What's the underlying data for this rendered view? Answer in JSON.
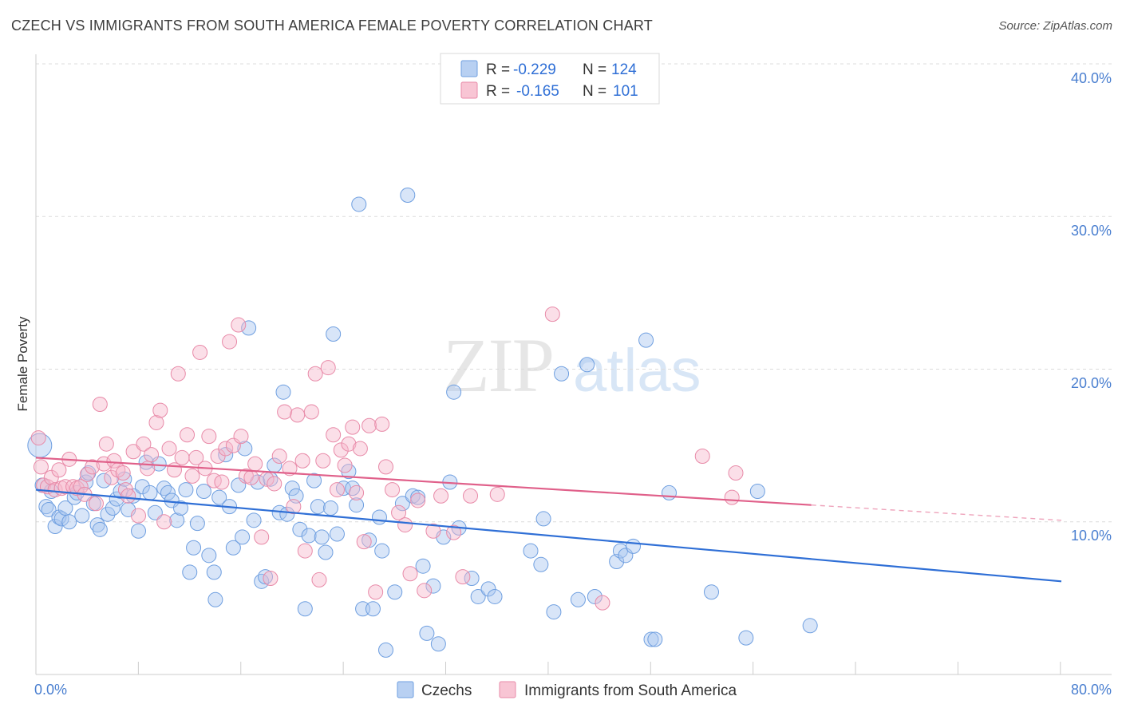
{
  "title": "CZECH VS IMMIGRANTS FROM SOUTH AMERICA FEMALE POVERTY CORRELATION CHART",
  "source": "Source: ZipAtlas.com",
  "watermark": {
    "zip": "ZIP",
    "atlas": "atlas"
  },
  "legend": {
    "r_label": "R =",
    "n_label": "N =",
    "rows": [
      {
        "r": "-0.229",
        "n": "124",
        "fill": "#b8d0f2",
        "stroke": "#6f9fe0"
      },
      {
        "r": "-0.165",
        "n": "101",
        "fill": "#f8c5d4",
        "stroke": "#e88aa8"
      }
    ]
  },
  "bottom_legend": [
    {
      "label": "Czechs",
      "fill": "#b8d0f2",
      "stroke": "#6f9fe0"
    },
    {
      "label": "Immigrants from South America",
      "fill": "#f8c5d4",
      "stroke": "#e88aa8"
    }
  ],
  "chart_data": {
    "type": "scatter",
    "title": "CZECH VS IMMIGRANTS FROM SOUTH AMERICA FEMALE POVERTY CORRELATION CHART",
    "xlabel": "",
    "ylabel": "Female Poverty",
    "xlim": [
      0,
      80
    ],
    "ylim": [
      0,
      40
    ],
    "x_tick_labels": [
      "0.0%",
      "80.0%"
    ],
    "y_ticks": [
      10,
      20,
      30,
      40
    ],
    "y_tick_labels": [
      "10.0%",
      "20.0%",
      "30.0%",
      "40.0%"
    ],
    "grid": "horizontal dashed",
    "legend_position": "top-center",
    "colors": {
      "czechs": "#4a7fd0",
      "immigrants": "#e0608a",
      "czechs_line": "#2f6fd6",
      "immigrants_line": "#e0608a"
    },
    "series": [
      {
        "name": "Czechs",
        "trend": {
          "x0": 0,
          "y0": 12.1,
          "x1": 80,
          "y1": 6.1
        },
        "points": [
          [
            0.3,
            15.0
          ],
          [
            0.5,
            12.4
          ],
          [
            0.8,
            11.0
          ],
          [
            1.0,
            10.8
          ],
          [
            1.2,
            12.0
          ],
          [
            1.5,
            9.7
          ],
          [
            1.8,
            10.3
          ],
          [
            2.0,
            10.2
          ],
          [
            2.3,
            10.9
          ],
          [
            2.6,
            10.0
          ],
          [
            3.0,
            11.6
          ],
          [
            3.2,
            11.9
          ],
          [
            3.6,
            10.4
          ],
          [
            3.9,
            12.6
          ],
          [
            4.1,
            13.2
          ],
          [
            4.5,
            11.2
          ],
          [
            4.8,
            9.8
          ],
          [
            5.0,
            9.5
          ],
          [
            5.3,
            12.7
          ],
          [
            5.6,
            10.5
          ],
          [
            6.0,
            10.9
          ],
          [
            6.3,
            11.5
          ],
          [
            6.6,
            12.0
          ],
          [
            6.9,
            12.8
          ],
          [
            7.2,
            10.8
          ],
          [
            7.6,
            11.7
          ],
          [
            8.0,
            9.4
          ],
          [
            8.3,
            12.3
          ],
          [
            8.6,
            13.9
          ],
          [
            8.9,
            11.9
          ],
          [
            9.3,
            10.6
          ],
          [
            9.6,
            13.8
          ],
          [
            10.0,
            12.2
          ],
          [
            10.3,
            11.9
          ],
          [
            10.6,
            11.4
          ],
          [
            11.0,
            10.1
          ],
          [
            11.3,
            10.9
          ],
          [
            11.7,
            12.1
          ],
          [
            12.0,
            6.7
          ],
          [
            12.3,
            8.3
          ],
          [
            12.6,
            9.9
          ],
          [
            13.1,
            12.0
          ],
          [
            13.5,
            7.8
          ],
          [
            13.9,
            6.7
          ],
          [
            14.0,
            4.9
          ],
          [
            14.3,
            11.6
          ],
          [
            14.8,
            14.4
          ],
          [
            15.1,
            11.0
          ],
          [
            15.4,
            8.3
          ],
          [
            15.8,
            12.4
          ],
          [
            16.1,
            9.0
          ],
          [
            16.3,
            14.8
          ],
          [
            16.6,
            22.7
          ],
          [
            17.0,
            10.1
          ],
          [
            17.3,
            12.6
          ],
          [
            17.6,
            6.1
          ],
          [
            17.9,
            6.4
          ],
          [
            18.3,
            12.8
          ],
          [
            18.6,
            13.7
          ],
          [
            19.0,
            10.6
          ],
          [
            19.3,
            18.5
          ],
          [
            19.6,
            10.5
          ],
          [
            20.0,
            12.2
          ],
          [
            20.3,
            11.7
          ],
          [
            20.6,
            9.5
          ],
          [
            21.0,
            4.3
          ],
          [
            21.3,
            9.1
          ],
          [
            21.7,
            12.7
          ],
          [
            22.0,
            11.0
          ],
          [
            22.3,
            9.0
          ],
          [
            22.6,
            8.0
          ],
          [
            23.0,
            10.9
          ],
          [
            23.2,
            22.3
          ],
          [
            23.5,
            9.2
          ],
          [
            24.0,
            12.2
          ],
          [
            24.4,
            13.3
          ],
          [
            24.7,
            12.2
          ],
          [
            25.0,
            11.1
          ],
          [
            25.2,
            30.8
          ],
          [
            25.5,
            4.3
          ],
          [
            26.0,
            8.8
          ],
          [
            26.3,
            4.3
          ],
          [
            26.8,
            10.3
          ],
          [
            27.0,
            8.1
          ],
          [
            27.3,
            1.6
          ],
          [
            28.0,
            5.4
          ],
          [
            28.6,
            11.2
          ],
          [
            29.0,
            31.4
          ],
          [
            29.4,
            11.7
          ],
          [
            29.8,
            11.6
          ],
          [
            30.2,
            7.1
          ],
          [
            30.5,
            2.7
          ],
          [
            31.0,
            5.8
          ],
          [
            31.4,
            2.0
          ],
          [
            31.8,
            9.0
          ],
          [
            32.3,
            12.6
          ],
          [
            32.6,
            18.5
          ],
          [
            33.0,
            9.6
          ],
          [
            34.0,
            6.3
          ],
          [
            34.5,
            5.1
          ],
          [
            35.3,
            5.6
          ],
          [
            35.8,
            5.1
          ],
          [
            38.6,
            8.1
          ],
          [
            39.4,
            7.2
          ],
          [
            39.6,
            10.2
          ],
          [
            40.4,
            4.1
          ],
          [
            41.0,
            19.7
          ],
          [
            42.3,
            4.9
          ],
          [
            43.0,
            20.3
          ],
          [
            43.6,
            5.1
          ],
          [
            45.3,
            7.4
          ],
          [
            45.6,
            8.1
          ],
          [
            46.0,
            7.8
          ],
          [
            46.6,
            8.4
          ],
          [
            47.6,
            21.9
          ],
          [
            48.0,
            2.3
          ],
          [
            48.3,
            2.3
          ],
          [
            49.4,
            11.9
          ],
          [
            52.7,
            5.4
          ],
          [
            55.4,
            2.4
          ],
          [
            56.3,
            12.0
          ],
          [
            60.4,
            3.2
          ]
        ]
      },
      {
        "name": "Immigrants from South America",
        "trend": {
          "x0": 0,
          "y0": 14.2,
          "x1": 60.5,
          "y1": 11.1,
          "dash_x1": 80,
          "dash_y1": 10.1
        },
        "points": [
          [
            0.2,
            15.5
          ],
          [
            0.4,
            13.6
          ],
          [
            0.6,
            12.4
          ],
          [
            0.9,
            12.3
          ],
          [
            1.2,
            12.9
          ],
          [
            1.5,
            12.1
          ],
          [
            1.8,
            13.4
          ],
          [
            2.0,
            12.2
          ],
          [
            2.3,
            12.3
          ],
          [
            2.6,
            14.1
          ],
          [
            2.9,
            12.3
          ],
          [
            3.2,
            12.2
          ],
          [
            3.5,
            12.3
          ],
          [
            3.8,
            11.8
          ],
          [
            4.0,
            13.1
          ],
          [
            4.4,
            13.6
          ],
          [
            4.7,
            11.2
          ],
          [
            5.0,
            17.7
          ],
          [
            5.3,
            13.8
          ],
          [
            5.5,
            15.1
          ],
          [
            5.9,
            12.9
          ],
          [
            6.1,
            14.0
          ],
          [
            6.4,
            13.4
          ],
          [
            6.8,
            13.2
          ],
          [
            7.0,
            12.1
          ],
          [
            7.2,
            11.7
          ],
          [
            7.6,
            14.6
          ],
          [
            8.0,
            10.4
          ],
          [
            8.4,
            15.1
          ],
          [
            8.7,
            13.5
          ],
          [
            9.0,
            14.4
          ],
          [
            9.4,
            16.5
          ],
          [
            9.7,
            17.3
          ],
          [
            10.0,
            10.0
          ],
          [
            10.4,
            14.8
          ],
          [
            10.8,
            13.4
          ],
          [
            11.1,
            19.7
          ],
          [
            11.4,
            14.2
          ],
          [
            11.8,
            15.7
          ],
          [
            12.2,
            13.0
          ],
          [
            12.5,
            14.2
          ],
          [
            12.8,
            21.1
          ],
          [
            13.2,
            13.5
          ],
          [
            13.5,
            15.6
          ],
          [
            13.9,
            12.7
          ],
          [
            14.2,
            14.3
          ],
          [
            14.5,
            12.6
          ],
          [
            14.8,
            14.8
          ],
          [
            15.1,
            21.8
          ],
          [
            15.4,
            15.0
          ],
          [
            15.8,
            22.9
          ],
          [
            16.0,
            15.6
          ],
          [
            16.4,
            13.0
          ],
          [
            16.8,
            12.9
          ],
          [
            17.1,
            13.8
          ],
          [
            17.6,
            9.0
          ],
          [
            18.0,
            12.8
          ],
          [
            18.3,
            6.3
          ],
          [
            18.6,
            12.5
          ],
          [
            19.0,
            14.3
          ],
          [
            19.4,
            17.2
          ],
          [
            19.8,
            13.5
          ],
          [
            20.1,
            11.0
          ],
          [
            20.4,
            17.0
          ],
          [
            20.8,
            14.0
          ],
          [
            21.0,
            8.1
          ],
          [
            21.5,
            17.2
          ],
          [
            21.8,
            19.7
          ],
          [
            22.1,
            6.2
          ],
          [
            22.4,
            14.0
          ],
          [
            22.8,
            20.1
          ],
          [
            23.2,
            15.7
          ],
          [
            23.5,
            12.1
          ],
          [
            23.8,
            14.7
          ],
          [
            24.1,
            13.7
          ],
          [
            24.4,
            15.1
          ],
          [
            24.7,
            16.2
          ],
          [
            25.0,
            11.9
          ],
          [
            25.3,
            14.8
          ],
          [
            25.6,
            8.7
          ],
          [
            26.0,
            16.3
          ],
          [
            26.5,
            5.4
          ],
          [
            27.0,
            16.4
          ],
          [
            27.3,
            13.6
          ],
          [
            27.8,
            12.1
          ],
          [
            28.3,
            10.6
          ],
          [
            28.8,
            9.8
          ],
          [
            29.2,
            6.6
          ],
          [
            29.8,
            11.4
          ],
          [
            30.3,
            5.5
          ],
          [
            31.0,
            9.4
          ],
          [
            31.6,
            11.7
          ],
          [
            32.6,
            9.3
          ],
          [
            33.3,
            6.4
          ],
          [
            33.9,
            11.7
          ],
          [
            36.0,
            11.8
          ],
          [
            40.3,
            23.6
          ],
          [
            44.2,
            4.7
          ],
          [
            52.0,
            14.3
          ],
          [
            54.3,
            11.6
          ],
          [
            54.6,
            13.2
          ]
        ]
      }
    ]
  }
}
